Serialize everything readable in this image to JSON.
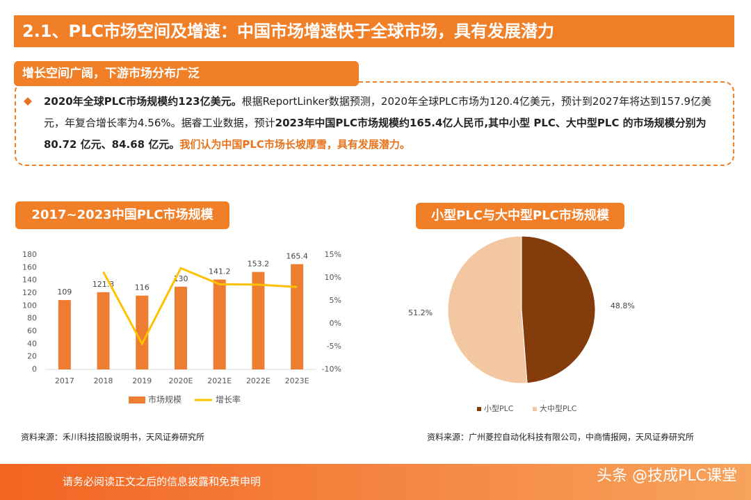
{
  "header": {
    "title": "2.1、PLC市场空间及增速：中国市场增速快于全球市场，具有发展潜力"
  },
  "section": {
    "title": "增长空间广阔，下游市场分布广泛",
    "runs": [
      "2020年全球PLC市场规模约123亿美元。",
      "根据ReportLinker数据预测，2020年全球PLC市场为120.4亿美元，预计到2027年将达到157.9亿美元，年复合增长率为4.56%。据睿工业数据，预计",
      "2023年中国PLC市场规模约165.4亿人民币,其中小型 PLC、大中型PLC 的市场规模分别为 80.72 亿元、84.68 亿元。",
      "我们认为中国PLC市场长坡厚雪，具有发展潜力。"
    ]
  },
  "chart_data": [
    {
      "type": "bar",
      "title": "2017~2023中国PLC市场规模",
      "categories": [
        "2017",
        "2018",
        "2019",
        "2020E",
        "2021E",
        "2022E",
        "2023E"
      ],
      "series": [
        {
          "name": "市场规模",
          "color": "#ED7D31",
          "values": [
            109,
            121.3,
            116,
            130,
            141.2,
            153.2,
            165.4
          ]
        },
        {
          "name": "增长率",
          "type": "line",
          "axis": "y2",
          "color": "#FFC000",
          "values": [
            null,
            11.3,
            -4.4,
            12.1,
            8.6,
            8.5,
            8.0
          ]
        }
      ],
      "ylim": [
        0,
        180
      ],
      "yticks": [
        0,
        20,
        40,
        60,
        80,
        100,
        120,
        140,
        160,
        180
      ],
      "y2lim": [
        -10,
        15
      ],
      "y2ticks": [
        {
          "value": -10,
          "label": "-10%"
        },
        {
          "value": -5,
          "label": "-5%"
        },
        {
          "value": 0,
          "label": "0%"
        },
        {
          "value": 5,
          "label": "5%"
        },
        {
          "value": 10,
          "label": "10%"
        },
        {
          "value": 15,
          "label": "15%"
        }
      ],
      "source": "资料来源：禾川科技招股说明书，天风证券研究所"
    },
    {
      "type": "pie",
      "title": "小型PLC与大中型PLC市场规模",
      "categories": [
        "小型PLC",
        "大中型PLC"
      ],
      "values": [
        48.8,
        51.2
      ],
      "value_labels": [
        "48.8%",
        "51.2%"
      ],
      "colors": [
        "#843C0C",
        "#F4C7A3"
      ],
      "source": "资料来源：广州菱控自动化科技有限公司，中商情报网，天风证券研究所"
    }
  ],
  "footer": {
    "disclaimer": "请务必阅读正文之后的信息披露和免责申明",
    "watermark": "头条 @技成PLC课堂"
  }
}
